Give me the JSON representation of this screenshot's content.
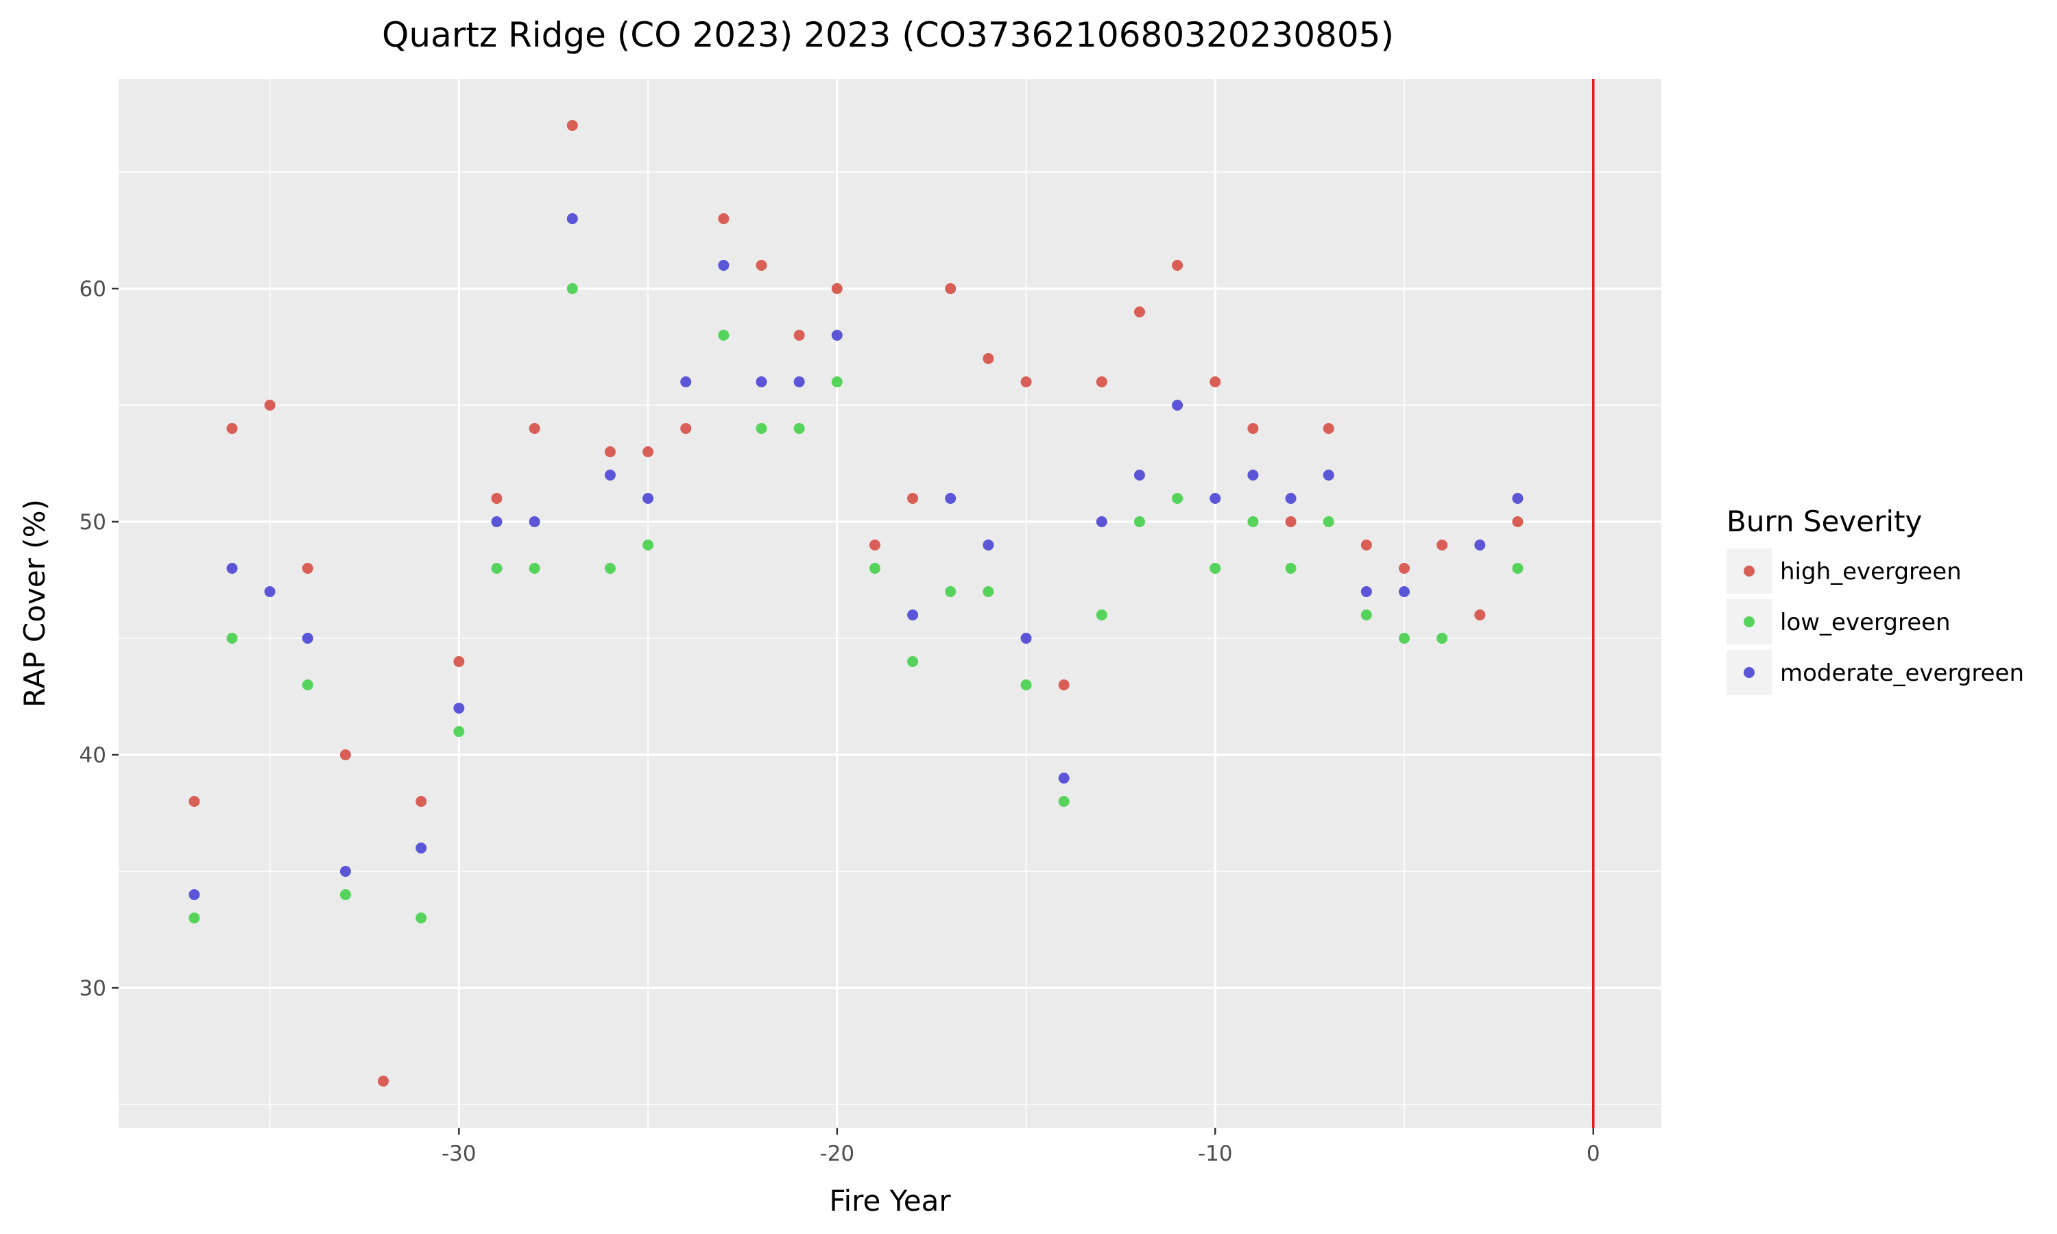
{
  "chart_data": {
    "type": "scatter",
    "title": "Quartz Ridge (CO 2023) 2023 (CO3736210680320230805)",
    "xlabel": "Fire Year",
    "ylabel": "RAP Cover (%)",
    "xlim": [
      -39.0,
      1.8
    ],
    "ylim": [
      24.0,
      69.0
    ],
    "x_ticks": [
      -30,
      -20,
      -10,
      0
    ],
    "x_tick_labels": [
      "-30",
      "-20",
      "-10",
      "0"
    ],
    "y_ticks": [
      30,
      40,
      50,
      60
    ],
    "y_tick_labels": [
      "30",
      "40",
      "50",
      "60"
    ],
    "grid": true,
    "background": "#ebebeb",
    "vline": {
      "x": 0,
      "color": "#e41a1c"
    },
    "legend": {
      "title": "Burn Severity",
      "position": "right"
    },
    "series": [
      {
        "name": "high_evergreen",
        "color": "#d95f56",
        "x": [
          -37,
          -36,
          -35,
          -34,
          -33,
          -32,
          -31,
          -30,
          -29,
          -28,
          -27,
          -26,
          -25,
          -24,
          -23,
          -22,
          -21,
          -20,
          -19,
          -18,
          -17,
          -16,
          -15,
          -14,
          -13,
          -12,
          -11,
          -10,
          -9,
          -8,
          -7,
          -6,
          -5,
          -4,
          -3,
          -2
        ],
        "y": [
          38,
          54,
          55,
          48,
          40,
          26,
          38,
          44,
          51,
          54,
          67,
          53,
          53,
          54,
          63,
          61,
          58,
          60,
          49,
          51,
          60,
          57,
          56,
          43,
          56,
          59,
          61,
          56,
          54,
          50,
          54,
          49,
          48,
          49,
          46,
          50
        ]
      },
      {
        "name": "low_evergreen",
        "color": "#55d35b",
        "x": [
          -37,
          -36,
          -34,
          -33,
          -31,
          -30,
          -29,
          -28,
          -27,
          -26,
          -25,
          -23,
          -22,
          -21,
          -20,
          -19,
          -18,
          -17,
          -16,
          -15,
          -14,
          -13,
          -12,
          -11,
          -10,
          -9,
          -8,
          -7,
          -6,
          -5,
          -4,
          -2
        ],
        "y": [
          33,
          45,
          43,
          34,
          33,
          41,
          48,
          48,
          60,
          48,
          49,
          58,
          54,
          54,
          56,
          48,
          44,
          47,
          47,
          43,
          38,
          46,
          50,
          51,
          48,
          50,
          48,
          50,
          46,
          45,
          45,
          48
        ]
      },
      {
        "name": "moderate_evergreen",
        "color": "#5b55d8",
        "x": [
          -37,
          -36,
          -35,
          -34,
          -33,
          -31,
          -30,
          -29,
          -28,
          -27,
          -26,
          -25,
          -24,
          -23,
          -22,
          -21,
          -20,
          -18,
          -17,
          -16,
          -15,
          -14,
          -13,
          -12,
          -11,
          -10,
          -9,
          -8,
          -7,
          -6,
          -5,
          -3,
          -2
        ],
        "y": [
          34,
          48,
          47,
          45,
          35,
          36,
          42,
          50,
          50,
          63,
          52,
          51,
          56,
          61,
          56,
          56,
          58,
          46,
          51,
          49,
          45,
          39,
          50,
          52,
          55,
          51,
          52,
          51,
          52,
          47,
          47,
          49,
          51
        ]
      }
    ]
  }
}
